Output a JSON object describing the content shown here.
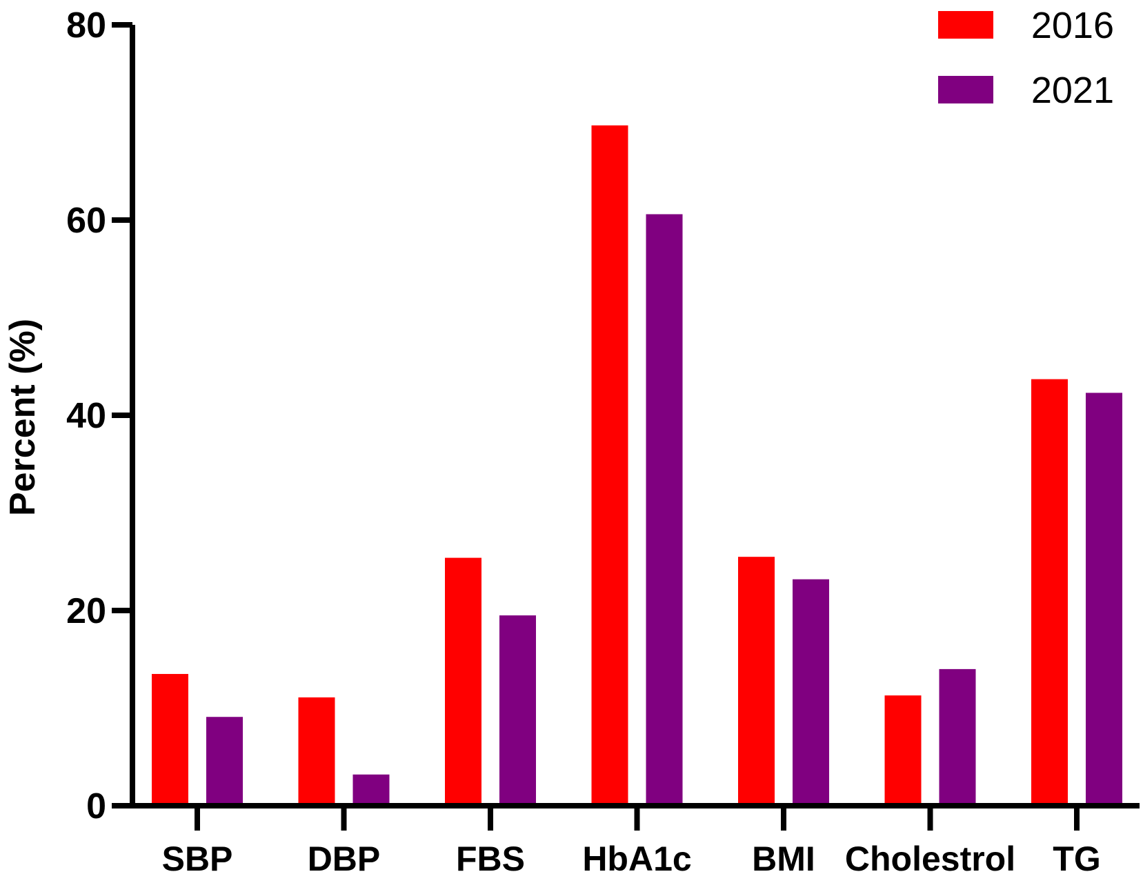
{
  "chart_data": {
    "type": "bar",
    "title": "",
    "xlabel": "",
    "ylabel": "Percent (%)",
    "ylim": [
      0,
      80
    ],
    "yticks": [
      0,
      20,
      40,
      60,
      80
    ],
    "grid": false,
    "legend_position": "top-right",
    "categories": [
      "SBP",
      "DBP",
      "FBS",
      "HbA1c",
      "BMI",
      "Cholestrol",
      "TG"
    ],
    "series": [
      {
        "name": "2016",
        "color": "#ff0000",
        "values": [
          13.5,
          11.1,
          25.4,
          69.7,
          25.5,
          11.3,
          43.7
        ]
      },
      {
        "name": "2021",
        "color": "#800080",
        "values": [
          9.1,
          3.2,
          19.5,
          60.6,
          23.2,
          14.0,
          42.3
        ]
      }
    ]
  }
}
